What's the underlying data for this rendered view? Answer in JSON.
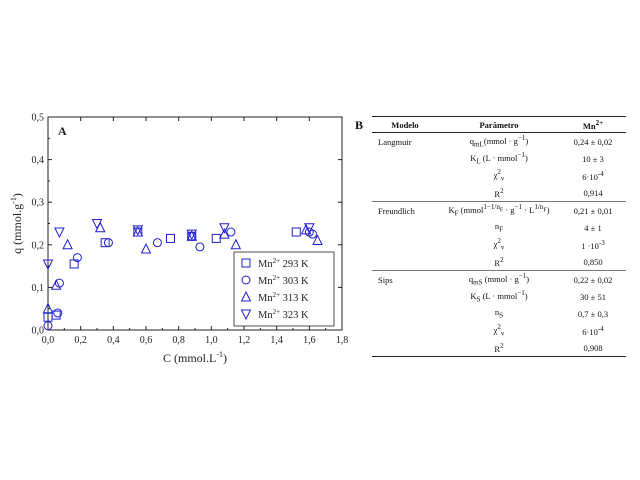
{
  "panel_labels": {
    "a": "A",
    "b": "B"
  },
  "chart_data": {
    "type": "scatter",
    "title": "",
    "xlabel": "C (mmol.L",
    "xlabel_sup": "-1",
    "xlabel_end": ")",
    "ylabel": "q (mmol.g",
    "ylabel_sup": "-1",
    "ylabel_end": ")",
    "xlim": [
      0.0,
      1.8
    ],
    "ylim": [
      0.0,
      0.5
    ],
    "xticks": [
      0.0,
      0.2,
      0.4,
      0.6,
      0.8,
      1.0,
      1.2,
      1.4,
      1.6,
      1.8
    ],
    "xtick_labels": [
      "0,0",
      "0,2",
      "0,4",
      "0,6",
      "0,8",
      "1,0",
      "1,2",
      "1,4",
      "1,6",
      "1,8"
    ],
    "yticks": [
      0.0,
      0.1,
      0.2,
      0.3,
      0.4,
      0.5
    ],
    "ytick_labels": [
      "0,0",
      "0,1",
      "0,2",
      "0,3",
      "0,4",
      "0,5"
    ],
    "marker_color": "#1f1fcc",
    "legend_position": "bottom-right",
    "series": [
      {
        "name": "Mn2+ 293 K",
        "ion": "Mn",
        "charge": "2+",
        "temp": "293 K",
        "marker": "square",
        "x": [
          0.0,
          0.05,
          0.16,
          0.35,
          0.55,
          0.75,
          0.88,
          1.03,
          1.52
        ],
        "y": [
          0.03,
          0.035,
          0.155,
          0.205,
          0.23,
          0.215,
          0.22,
          0.215,
          0.23
        ]
      },
      {
        "name": "Mn2+ 303 K",
        "ion": "Mn",
        "charge": "2+",
        "temp": "303 K",
        "marker": "circle",
        "x": [
          0.0,
          0.06,
          0.07,
          0.18,
          0.37,
          0.67,
          0.88,
          0.93,
          1.12,
          1.6,
          1.62
        ],
        "y": [
          0.01,
          0.04,
          0.11,
          0.17,
          0.205,
          0.205,
          0.22,
          0.195,
          0.23,
          0.23,
          0.225
        ]
      },
      {
        "name": "Mn2+ 313 K",
        "ion": "Mn",
        "charge": "2+",
        "temp": "313 K",
        "marker": "triangle-up",
        "x": [
          0.0,
          0.05,
          0.12,
          0.32,
          0.55,
          0.6,
          0.88,
          1.08,
          1.15,
          1.58,
          1.65
        ],
        "y": [
          0.05,
          0.105,
          0.2,
          0.24,
          0.23,
          0.19,
          0.22,
          0.225,
          0.2,
          0.235,
          0.21
        ]
      },
      {
        "name": "Mn2+ 323 K",
        "ion": "Mn",
        "charge": "2+",
        "temp": "323 K",
        "marker": "triangle-down",
        "x": [
          0.0,
          0.07,
          0.3,
          0.55,
          0.88,
          1.08,
          1.6
        ],
        "y": [
          0.155,
          0.23,
          0.25,
          0.235,
          0.225,
          0.24,
          0.24
        ]
      }
    ]
  },
  "table": {
    "headers": {
      "model": "Modelo",
      "param": "Parâmetro",
      "ion": "Mn",
      "ion_sup": "2+"
    },
    "rows": [
      {
        "model": "Langmuir",
        "param": "q",
        "param_sub": "mL",
        "param_rest": "(mmol · g",
        "param_sup": "−1",
        "param_end": ")",
        "value": "0,24 ± 0,02"
      },
      {
        "model": "",
        "param": "K",
        "param_sub": "L",
        "param_rest": " (L · mmol",
        "param_sup": "−1",
        "param_end": ")",
        "value": "10 ± 3"
      },
      {
        "model": "",
        "param": "χ",
        "param_sub": "v",
        "param_sup2": "2",
        "value": "6·10",
        "value_sup": "-4"
      },
      {
        "model": "",
        "param": "R",
        "param_sup2": "2",
        "value": "0,914"
      },
      {
        "model": "Freundlich",
        "param": "K",
        "param_sub": "F",
        "param_rest": " (mmol",
        "param_sup": "1−1/n",
        "param_sup_sub": "F",
        "param_end": " · g",
        "param_sup3": "−1",
        "param_end2": " · L",
        "param_sup4": "1/n",
        "param_sup4_sub": "F",
        "param_end3": ")",
        "value": "0,21 ± 0,01"
      },
      {
        "model": "",
        "param": "n",
        "param_sub": "F",
        "value": "4 ± 1"
      },
      {
        "model": "",
        "param": "χ",
        "param_sub": "v",
        "param_sup2": "2",
        "value": "1 ·10",
        "value_sup": "-3"
      },
      {
        "model": "",
        "param": "R",
        "param_sup2": "2",
        "value": "0,850"
      },
      {
        "model": "Sips",
        "param": "q",
        "param_sub": "mS",
        "param_rest": " (mmol · g",
        "param_sup": "−1",
        "param_end": ")",
        "value": "0,22 ± 0,02"
      },
      {
        "model": "",
        "param": "K",
        "param_sub": "S",
        "param_rest": " (L · mmol",
        "param_sup": "−1",
        "param_end": ")",
        "value": "30 ± 51"
      },
      {
        "model": "",
        "param": "n",
        "param_sub": "S",
        "value": "0,7 ± 0,3"
      },
      {
        "model": "",
        "param": "χ",
        "param_sub": "v",
        "param_sup2": "2",
        "value": "6·10",
        "value_sup": "-4"
      },
      {
        "model": "",
        "param": "R",
        "param_sup2": "2",
        "value": "0,908"
      }
    ]
  }
}
